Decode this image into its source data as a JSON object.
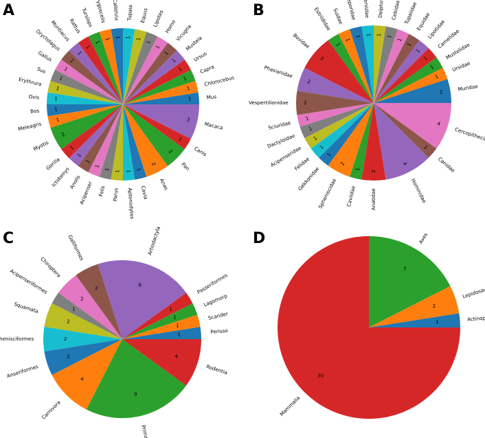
{
  "chart_data": [
    {
      "panel": "A",
      "type": "pie",
      "labels": [
        "Mus",
        "Chlorocebus",
        "Capra",
        "Ursus",
        "Mustela",
        "Vicugna",
        "Homo",
        "Lipotes",
        "Equus",
        "Tupaia",
        "Callithrix",
        "Pygoscelis",
        "Tursiops",
        "Rattus",
        "Muntiacus",
        "Oryctolagus",
        "Gallus",
        "Sus",
        "Erythrura",
        "Ovis",
        "Bos",
        "Meleagris",
        "Myotis",
        "Gorilla",
        "Ictidomys",
        "Anolis",
        "Acipenser",
        "Felis",
        "Parus",
        "Aptenodytes",
        "Cavia",
        "Anas",
        "Pan",
        "Canis",
        "Macaca"
      ],
      "values": [
        1,
        1,
        1,
        1,
        1,
        1,
        1,
        1,
        1,
        1,
        1,
        1,
        1,
        1,
        1,
        1,
        1,
        1,
        1,
        1,
        1,
        1,
        2,
        1,
        1,
        1,
        1,
        1,
        1,
        1,
        1,
        2,
        2,
        1,
        3
      ],
      "start_angle": 0
    },
    {
      "panel": "B",
      "type": "pie",
      "labels": [
        "Muridae",
        "Ursidae",
        "Mustelidae",
        "Camelidae",
        "Lipotidae",
        "Equidae",
        "Tupaiidae",
        "Cebidae",
        "Delphinidae",
        "Cervidae",
        "Leporidae",
        "Suidae",
        "Estrildidae",
        "Bovidae",
        "Phasianidae",
        "Vespertilionidae",
        "Sciuridae",
        "Dactyloidae",
        "Acipenseridae",
        "Felidae",
        "Gekkonidae",
        "Spheniscidae",
        "Caviidae",
        "Anatidae",
        "Hominidae",
        "Canidae",
        "Cercopithecidae"
      ],
      "values": [
        2,
        1,
        1,
        1,
        1,
        1,
        1,
        1,
        1,
        1,
        1,
        1,
        1,
        3,
        2,
        2,
        1,
        1,
        1,
        1,
        1,
        2,
        1,
        2,
        4,
        1,
        4
      ],
      "start_angle": 0
    },
    {
      "panel": "C",
      "type": "pie",
      "labels": [
        "Perisso",
        "Scander",
        "Lagomorp",
        "Passeriformes",
        "Artiodactyla",
        "Galliformes",
        "Chiroptera",
        "Acipenseriformes",
        "Squamata",
        "Sphenisciformes",
        "Anseriformes",
        "Carnivora",
        "Primates",
        "Rodentia"
      ],
      "values": [
        1,
        1,
        1,
        1,
        8,
        2,
        2,
        1,
        2,
        2,
        2,
        4,
        9,
        4
      ],
      "start_angle": 0
    },
    {
      "panel": "D",
      "type": "pie",
      "labels": [
        "Actinopteri",
        "Lepidosauria",
        "Aves",
        "Mammalia"
      ],
      "values": [
        1,
        2,
        7,
        30
      ],
      "start_angle": 0
    }
  ],
  "colors": [
    "#1f77b4",
    "#ff7f0e",
    "#2ca02c",
    "#d62728",
    "#9467bd",
    "#8c564b",
    "#e377c2",
    "#7f7f7f",
    "#bcbd22",
    "#17becf"
  ],
  "panel_letters": [
    "A",
    "B",
    "C",
    "D"
  ]
}
